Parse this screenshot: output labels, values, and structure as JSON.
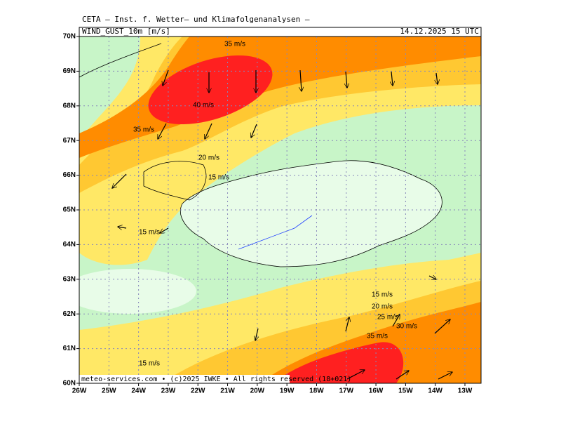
{
  "header": {
    "title": "CETA — Inst. f. Wetter— und Klimafolgenanalysen —",
    "field": "WIND_GUST_10m [m/s]",
    "time": "14.12.2025 15 UTC"
  },
  "axes": {
    "lat_labels": [
      "70N",
      "69N",
      "68N",
      "67N",
      "66N",
      "65N",
      "64N",
      "63N",
      "62N",
      "61N",
      "60N"
    ],
    "lon_labels": [
      "26W",
      "25W",
      "24W",
      "23W",
      "22W",
      "21W",
      "20W",
      "19W",
      "18W",
      "17W",
      "16W",
      "15W",
      "14W",
      "13W"
    ]
  },
  "contour_labels": [
    "35 m/s",
    "40 m/s",
    "35 m/s",
    "20 m/s",
    "15 m/s",
    "15 m/s",
    "15 m/s",
    "20 m/s",
    "25 m/s",
    "30 m/s",
    "35 m/s",
    "15 m/s"
  ],
  "footer": "meteo-services.com • (c)2025 IWKE • All rights reserved (18+021)"
}
